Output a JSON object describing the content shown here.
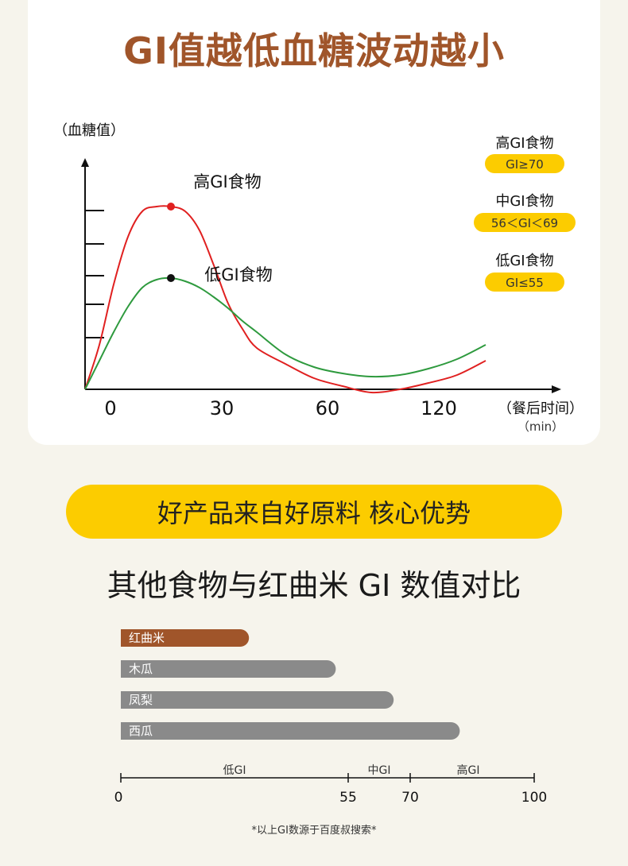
{
  "card": {
    "title": "GI值越低血糖波动越小"
  },
  "chart_data": [
    {
      "type": "line",
      "ylabel": "（血糖值）",
      "xlabel": "（餐后时间）",
      "xunit": "（min）",
      "x_ticks": [
        "0",
        "30",
        "60",
        "120"
      ],
      "series": [
        {
          "name": "高GI食物",
          "color": "#e02020",
          "points": [
            [
              0,
              0
            ],
            [
              5,
              1.4
            ],
            [
              10,
              3.3
            ],
            [
              15,
              4.8
            ],
            [
              20,
              5.6
            ],
            [
              25,
              5.75
            ],
            [
              30,
              5.75
            ],
            [
              35,
              5.6
            ],
            [
              40,
              5.0
            ],
            [
              45,
              3.9
            ],
            [
              50,
              2.7
            ],
            [
              55,
              1.9
            ],
            [
              60,
              1.3
            ],
            [
              70,
              0.8
            ],
            [
              80,
              0.35
            ],
            [
              90,
              0.1
            ],
            [
              100,
              -0.1
            ],
            [
              110,
              0.0
            ],
            [
              120,
              0.2
            ],
            [
              130,
              0.45
            ],
            [
              140,
              0.9
            ]
          ]
        },
        {
          "name": "低GI食物",
          "color": "#2e9a3e",
          "points": [
            [
              0,
              0
            ],
            [
              5,
              0.9
            ],
            [
              10,
              1.8
            ],
            [
              15,
              2.6
            ],
            [
              20,
              3.2
            ],
            [
              25,
              3.45
            ],
            [
              30,
              3.5
            ],
            [
              35,
              3.4
            ],
            [
              40,
              3.2
            ],
            [
              45,
              2.9
            ],
            [
              50,
              2.55
            ],
            [
              55,
              2.15
            ],
            [
              60,
              1.8
            ],
            [
              70,
              1.1
            ],
            [
              80,
              0.7
            ],
            [
              90,
              0.5
            ],
            [
              100,
              0.4
            ],
            [
              110,
              0.45
            ],
            [
              120,
              0.65
            ],
            [
              130,
              0.95
            ],
            [
              140,
              1.4
            ]
          ]
        }
      ],
      "markers": [
        {
          "label": "高GI食物",
          "x": 30,
          "y": 5.75,
          "color": "#e02020"
        },
        {
          "label": "低GI食物",
          "x": 30,
          "y": 3.5,
          "color": "#111111"
        }
      ],
      "legend": [
        {
          "label": "高GI食物",
          "range": "GI≥70"
        },
        {
          "label": "中GI食物",
          "range": "56＜GI＜69"
        },
        {
          "label": "低GI食物",
          "range": "GI≤55"
        }
      ],
      "legend_position": "right"
    },
    {
      "type": "bar",
      "orientation": "horizontal",
      "title": "其他食物与红曲米 GI 数值对比",
      "categories": [
        "红曲米",
        "木瓜",
        "凤梨",
        "西瓜"
      ],
      "values": [
        31,
        52,
        66,
        82
      ],
      "colors": [
        "#a0552a",
        "#8a8a8a",
        "#8a8a8a",
        "#8a8a8a"
      ],
      "axis_ticks": [
        0,
        55,
        70,
        100
      ],
      "xlim": [
        0,
        100
      ],
      "zones": [
        {
          "label": "低GI",
          "from": 0,
          "to": 55
        },
        {
          "label": "中GI",
          "from": 55,
          "to": 70
        },
        {
          "label": "高GI",
          "from": 70,
          "to": 100
        }
      ]
    }
  ],
  "banner": {
    "text": "好产品来自好原料 核心优势"
  },
  "footnote": "*以上GI数源于百度叔搜索*",
  "colors": {
    "title_brown": "#a0552a",
    "banner_yellow": "#fccc00",
    "legend_yellow": "#fccc00"
  }
}
